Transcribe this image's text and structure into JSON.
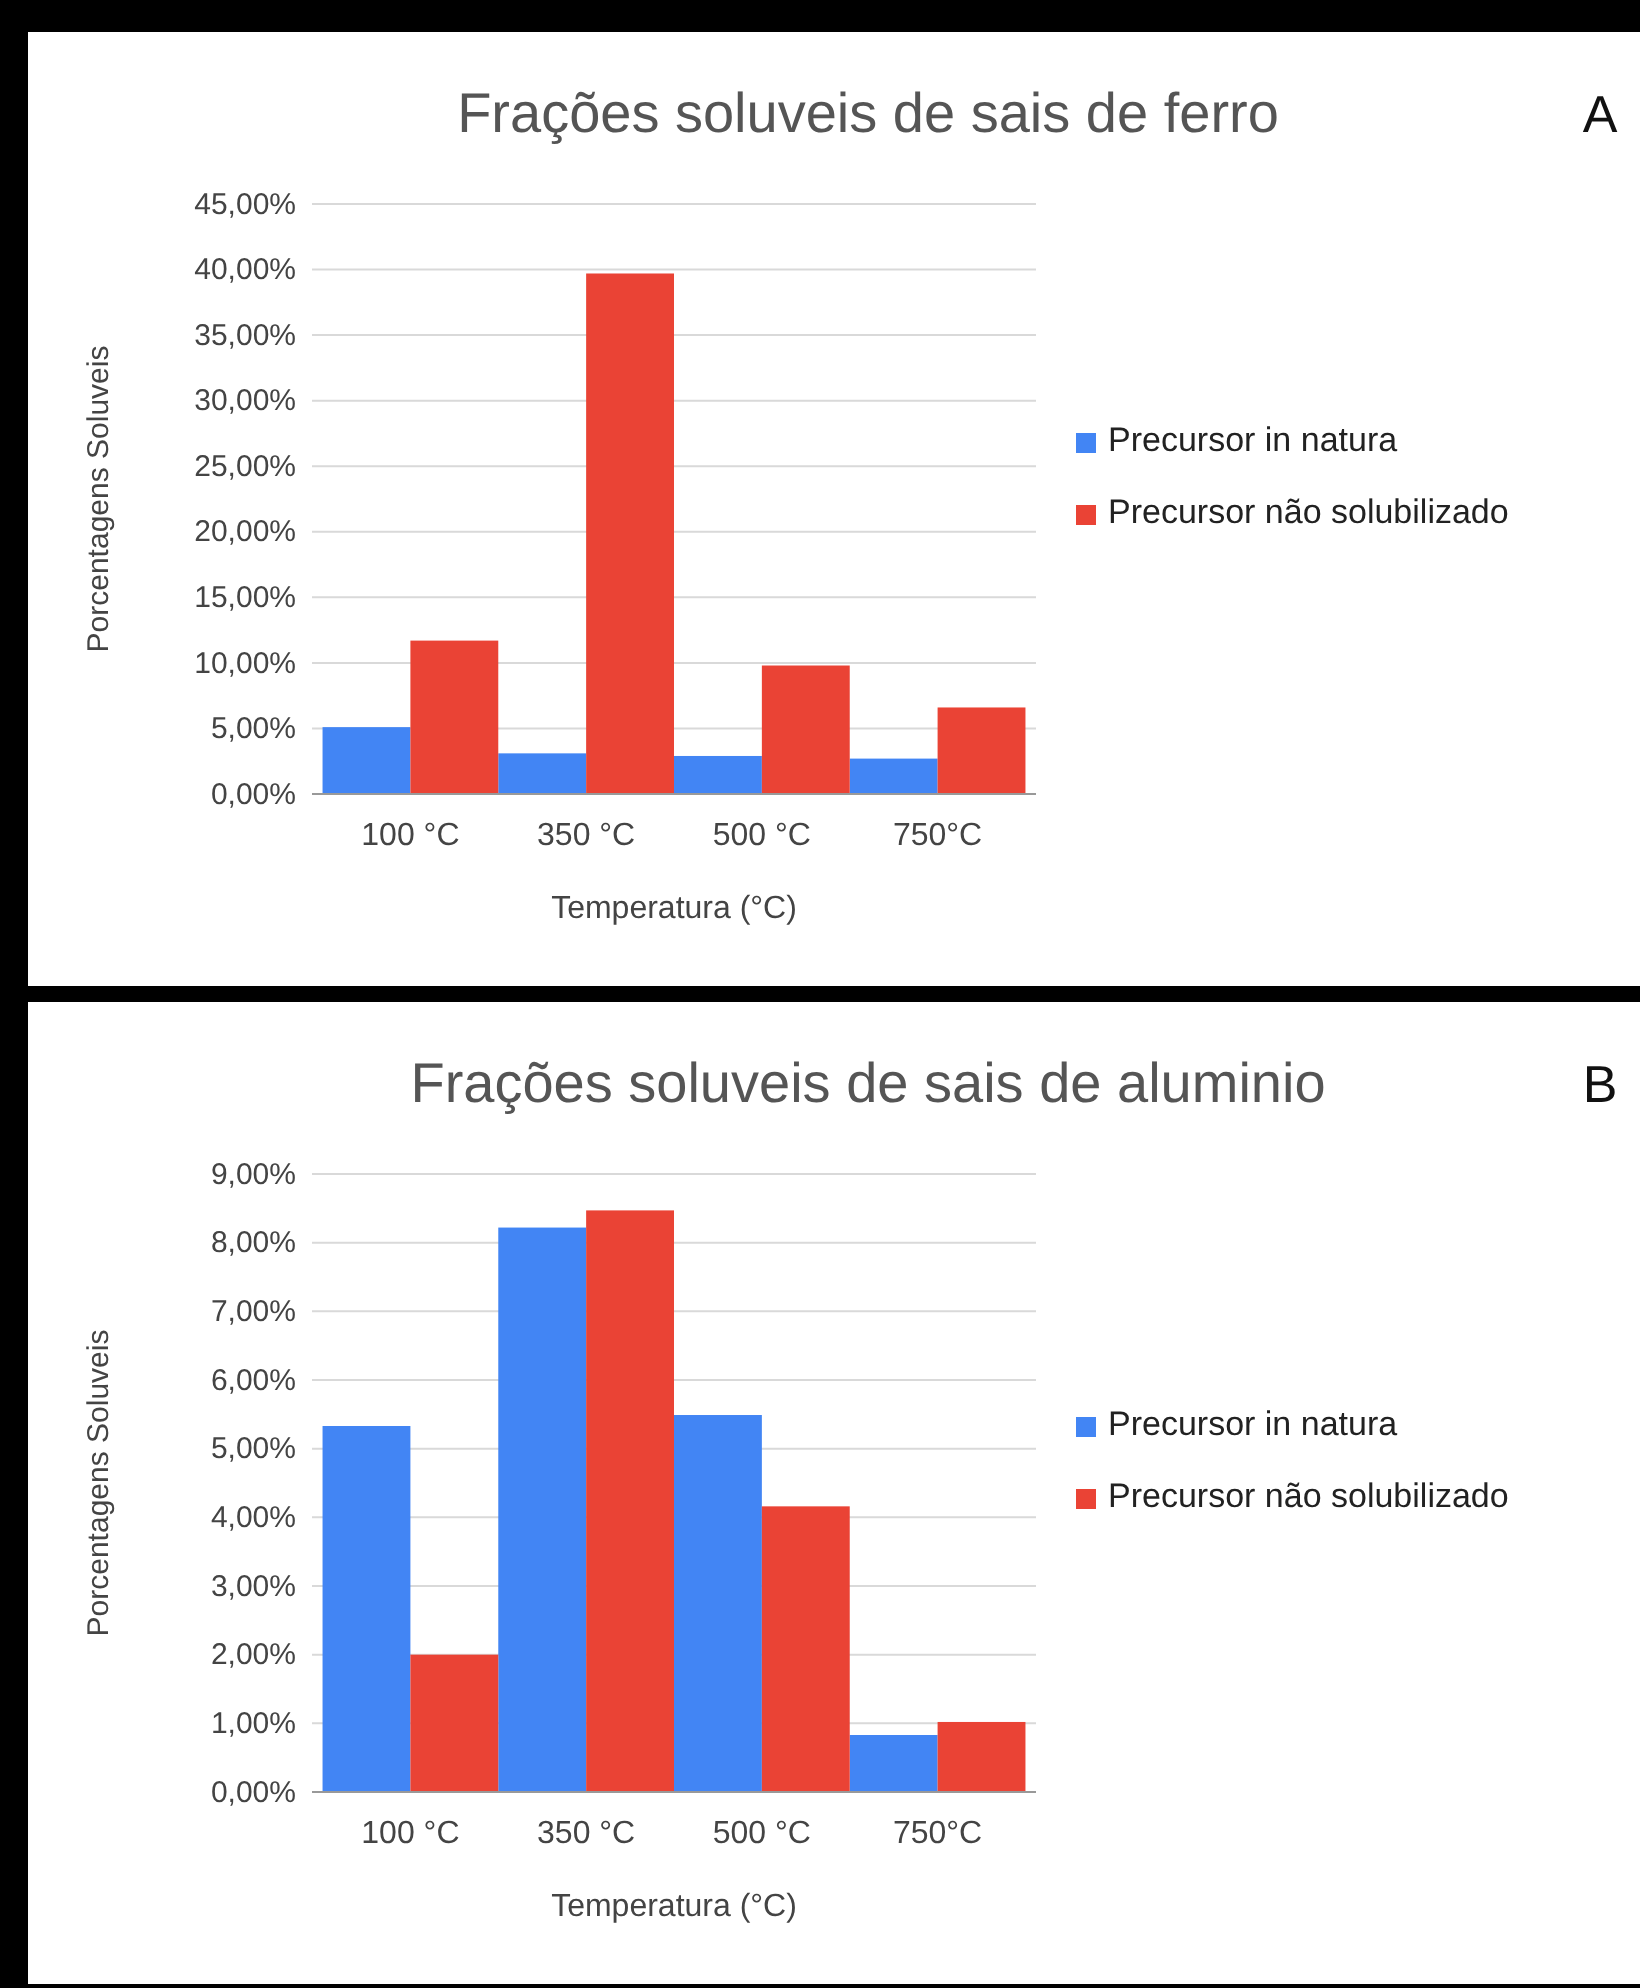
{
  "chart_data": [
    {
      "type": "bar",
      "title": "Frações soluveis de sais de ferro",
      "xlabel": "Temperatura (°C)",
      "ylabel": "Porcentagens Soluveis",
      "categories": [
        "100 °C",
        "350 °C",
        "500 °C",
        "750°C"
      ],
      "series": [
        {
          "name": "Precursor in natura",
          "color": "#4285f4",
          "values": [
            5.1,
            3.1,
            2.9,
            2.7
          ]
        },
        {
          "name": "Precursor não solubilizado",
          "color": "#ea4335",
          "values": [
            11.7,
            39.7,
            9.8,
            6.6
          ]
        }
      ],
      "ylim": [
        0,
        45
      ],
      "yticks": [
        {
          "value": 0,
          "label": "0,00%"
        },
        {
          "value": 5,
          "label": "5,00%"
        },
        {
          "value": 10,
          "label": "10,00%"
        },
        {
          "value": 15,
          "label": "15,00%"
        },
        {
          "value": 20,
          "label": "20,00%"
        },
        {
          "value": 25,
          "label": "25,00%"
        },
        {
          "value": 30,
          "label": "30,00%"
        },
        {
          "value": 35,
          "label": "35,00%"
        },
        {
          "value": 40,
          "label": "40,00%"
        },
        {
          "value": 45,
          "label": "45,00%"
        }
      ],
      "grid": "y",
      "legend": "right",
      "annotations": [
        "A"
      ]
    },
    {
      "type": "bar",
      "title": "Frações soluveis de sais de aluminio",
      "xlabel": "Temperatura (°C)",
      "ylabel": "Porcentagens Soluveis",
      "categories": [
        "100 °C",
        "350 °C",
        "500 °C",
        "750°C"
      ],
      "series": [
        {
          "name": "Precursor in natura",
          "color": "#4285f4",
          "values": [
            5.33,
            8.22,
            5.49,
            0.83
          ]
        },
        {
          "name": "Precursor não solubilizado",
          "color": "#ea4335",
          "values": [
            2.0,
            8.47,
            4.16,
            1.02
          ]
        }
      ],
      "ylim": [
        0,
        9
      ],
      "yticks": [
        {
          "value": 0,
          "label": "0,00%"
        },
        {
          "value": 1,
          "label": "1,00%"
        },
        {
          "value": 2,
          "label": "2,00%"
        },
        {
          "value": 3,
          "label": "3,00%"
        },
        {
          "value": 4,
          "label": "4,00%"
        },
        {
          "value": 5,
          "label": "5,00%"
        },
        {
          "value": 6,
          "label": "6,00%"
        },
        {
          "value": 7,
          "label": "7,00%"
        },
        {
          "value": 8,
          "label": "8,00%"
        },
        {
          "value": 9,
          "label": "9,00%"
        }
      ],
      "grid": "y",
      "legend": "right",
      "annotations": [
        "B"
      ]
    }
  ]
}
